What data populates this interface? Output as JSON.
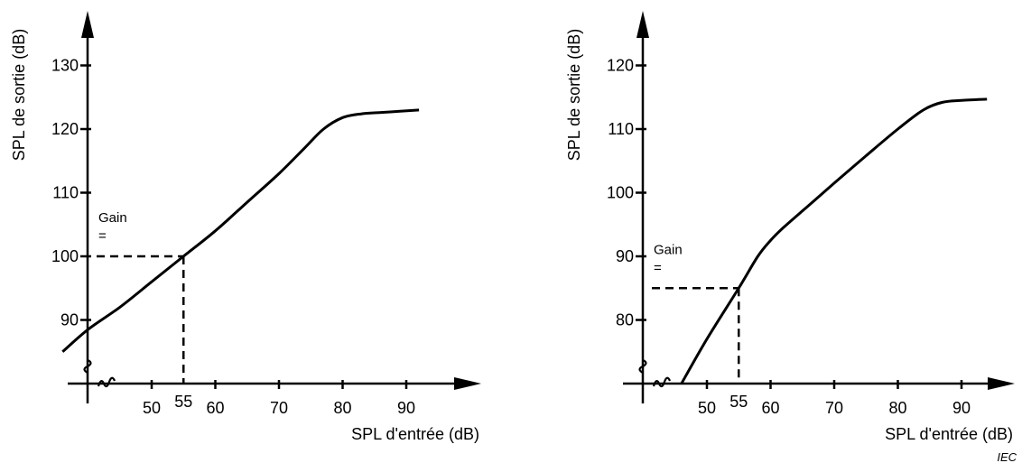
{
  "chart_data": [
    {
      "type": "line",
      "xlabel": "SPL d'entrée (dB)",
      "ylabel": "SPL de sortie (dB)",
      "x_ticks": [
        50,
        55,
        60,
        70,
        80,
        90
      ],
      "y_ticks": [
        90,
        100,
        110,
        120,
        130
      ],
      "xlim": [
        36,
        100
      ],
      "ylim": [
        80,
        138
      ],
      "axis_break": true,
      "grid": false,
      "annotation": {
        "lines": [
          "Gain",
          "="
        ],
        "x": 55,
        "y": 100
      },
      "series": [
        {
          "x": [
            36,
            40,
            45,
            50,
            55,
            60,
            65,
            70,
            74,
            77,
            80,
            83,
            86,
            89,
            92
          ],
          "y": [
            85,
            88.5,
            92,
            96,
            100,
            104,
            108.5,
            113,
            117,
            120,
            121.8,
            122.4,
            122.6,
            122.8,
            123
          ]
        }
      ]
    },
    {
      "type": "line",
      "xlabel": "SPL d'entrée (dB)",
      "ylabel": "SPL de sortie (dB)",
      "x_ticks": [
        50,
        55,
        60,
        70,
        80,
        90
      ],
      "y_ticks": [
        80,
        90,
        100,
        110,
        120
      ],
      "xlim": [
        36,
        100
      ],
      "ylim": [
        70,
        128
      ],
      "axis_break": true,
      "grid": false,
      "annotation": {
        "lines": [
          "Gain",
          "="
        ],
        "x": 55,
        "y": 85
      },
      "series": [
        {
          "x": [
            46,
            50,
            55,
            58,
            60,
            62,
            66,
            70,
            75,
            80,
            84,
            87,
            90,
            94
          ],
          "y": [
            70,
            77,
            85,
            90,
            92.5,
            94.5,
            98,
            101.5,
            105.8,
            110,
            113,
            114.2,
            114.5,
            114.7
          ]
        }
      ]
    }
  ],
  "source_label": "IEC"
}
